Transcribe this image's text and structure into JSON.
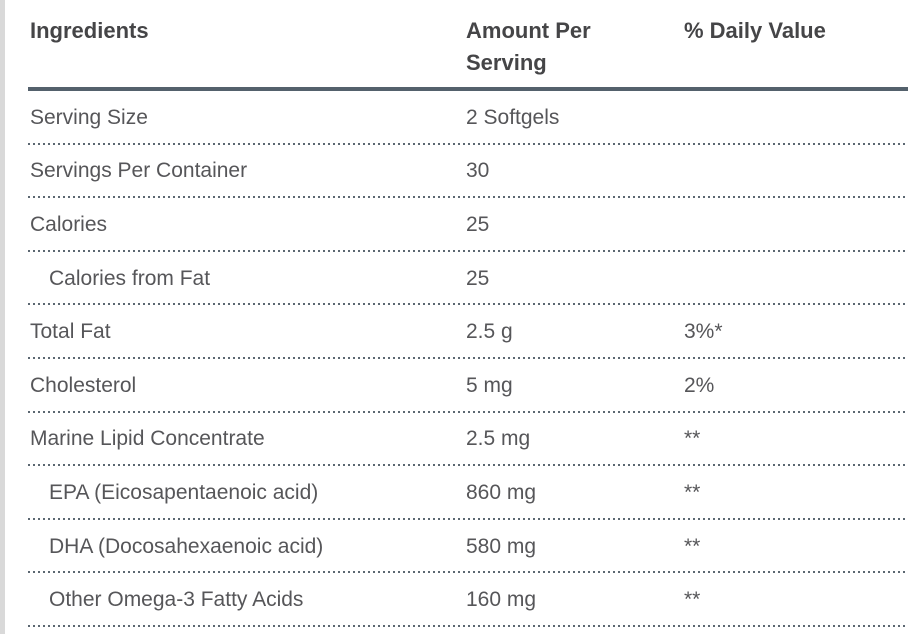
{
  "table": {
    "headers": {
      "ingredients": "Ingredients",
      "amount": "Amount Per Serving",
      "daily_value": "% Daily Value"
    },
    "rows": [
      {
        "ingredient": "Serving Size",
        "amount": "2 Softgels",
        "daily_value": ""
      },
      {
        "ingredient": "Servings Per Container",
        "amount": "30",
        "daily_value": ""
      },
      {
        "ingredient": "Calories",
        "amount": "25",
        "daily_value": ""
      },
      {
        "ingredient": "Calories from Fat",
        "amount": "25",
        "daily_value": ""
      },
      {
        "ingredient": "Total Fat",
        "amount": "2.5 g",
        "daily_value": "3%*"
      },
      {
        "ingredient": "Cholesterol",
        "amount": "5 mg",
        "daily_value": "2%"
      },
      {
        "ingredient": "Marine Lipid Concentrate",
        "amount": "2.5 mg",
        "daily_value": "**"
      },
      {
        "ingredient": "EPA (Eicosapentaenoic acid)",
        "amount": "860 mg",
        "daily_value": "**"
      },
      {
        "ingredient": "DHA (Docosahexaenoic acid)",
        "amount": "580 mg",
        "daily_value": "**"
      },
      {
        "ingredient": "Other Omega-3 Fatty Acids",
        "amount": "160 mg",
        "daily_value": "**"
      }
    ]
  },
  "colors": {
    "accent_line": "#54616c",
    "dotted_line": "#5b6771",
    "header_text": "#454547",
    "body_text": "#565659",
    "left_strip": "#d9d9d9"
  }
}
